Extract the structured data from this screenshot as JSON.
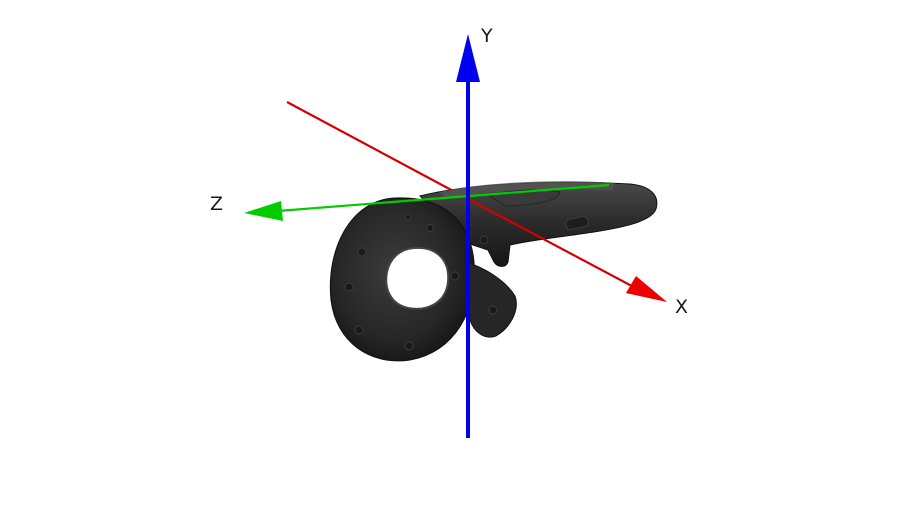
{
  "axes": {
    "x": {
      "label": "X",
      "color": "#d40000"
    },
    "y": {
      "label": "Y",
      "color": "#0000ee"
    },
    "z": {
      "label": "Z",
      "color": "#00cc00"
    }
  },
  "object": {
    "body_color": "#2b2b2b",
    "highlight_color": "#4a4a4a",
    "shadow_color": "#151515"
  }
}
